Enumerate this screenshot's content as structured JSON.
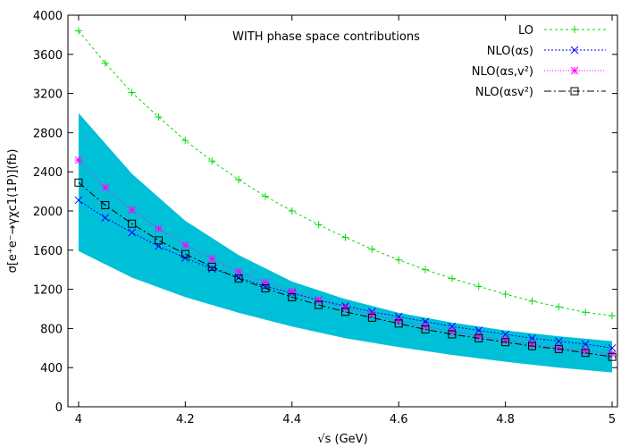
{
  "chart_data": {
    "type": "line",
    "title": "",
    "annotation": "WITH phase space contributions",
    "xlabel": "√s (GeV)",
    "ylabel": "σ[e⁺e⁻→γχc1(1P)](fb)",
    "xlim": [
      3.98,
      5.01
    ],
    "ylim": [
      0,
      4000
    ],
    "xticks": [
      4,
      4.2,
      4.4,
      4.6,
      4.8,
      5
    ],
    "xtick_labels": [
      "4",
      "4.2",
      "4.4",
      "4.6",
      "4.8",
      "5"
    ],
    "yticks": [
      0,
      400,
      800,
      1200,
      1600,
      2000,
      2400,
      2800,
      3200,
      3600,
      4000
    ],
    "ytick_labels": [
      "0",
      "400",
      "800",
      "1200",
      "1600",
      "2000",
      "2400",
      "2800",
      "3200",
      "3600",
      "4000"
    ],
    "grid": false,
    "legend_position": "top-right",
    "band": {
      "color": "#00c0d8",
      "x": [
        4.0,
        4.1,
        4.2,
        4.3,
        4.4,
        4.5,
        4.6,
        4.7,
        4.8,
        4.9,
        5.0
      ],
      "upper": [
        3000,
        2380,
        1900,
        1550,
        1280,
        1100,
        960,
        860,
        780,
        720,
        670
      ],
      "lower": [
        1590,
        1320,
        1120,
        960,
        820,
        700,
        610,
        530,
        460,
        400,
        350
      ]
    },
    "series": [
      {
        "name": "LO",
        "color": "#00dd00",
        "dash": "3,3",
        "marker": "plus",
        "x": [
          4.0,
          4.05,
          4.1,
          4.15,
          4.2,
          4.25,
          4.3,
          4.35,
          4.4,
          4.45,
          4.5,
          4.55,
          4.6,
          4.65,
          4.7,
          4.75,
          4.8,
          4.85,
          4.9,
          4.95,
          5.0
        ],
        "values": [
          3840,
          3510,
          3210,
          2960,
          2720,
          2510,
          2320,
          2150,
          2000,
          1860,
          1730,
          1610,
          1500,
          1400,
          1310,
          1230,
          1150,
          1080,
          1020,
          965,
          930
        ]
      },
      {
        "name": "NLO(αs)",
        "color": "#0000ff",
        "dash": "2,2",
        "marker": "x",
        "x": [
          4.0,
          4.05,
          4.1,
          4.15,
          4.2,
          4.25,
          4.3,
          4.35,
          4.4,
          4.45,
          4.5,
          4.55,
          4.6,
          4.65,
          4.7,
          4.75,
          4.8,
          4.85,
          4.9,
          4.95,
          5.0
        ],
        "values": [
          2110,
          1930,
          1780,
          1640,
          1520,
          1410,
          1320,
          1230,
          1160,
          1090,
          1030,
          970,
          920,
          870,
          820,
          780,
          740,
          700,
          670,
          640,
          600
        ]
      },
      {
        "name": "NLO(αs,v²)",
        "color": "#ff00ff",
        "dash": "1,2",
        "marker": "star",
        "x": [
          4.0,
          4.05,
          4.1,
          4.15,
          4.2,
          4.25,
          4.3,
          4.35,
          4.4,
          4.45,
          4.5,
          4.55,
          4.6,
          4.65,
          4.7,
          4.75,
          4.8,
          4.85,
          4.9,
          4.95,
          5.0
        ],
        "values": [
          2520,
          2240,
          2010,
          1820,
          1650,
          1510,
          1380,
          1270,
          1180,
          1090,
          1010,
          940,
          880,
          820,
          770,
          720,
          680,
          640,
          600,
          570,
          540
        ]
      },
      {
        "name": "NLO(αsv²)",
        "color": "#000000",
        "dash": "8,3,2,3",
        "marker": "square",
        "x": [
          4.0,
          4.05,
          4.1,
          4.15,
          4.2,
          4.25,
          4.3,
          4.35,
          4.4,
          4.45,
          4.5,
          4.55,
          4.6,
          4.65,
          4.7,
          4.75,
          4.8,
          4.85,
          4.9,
          4.95,
          5.0
        ],
        "values": [
          2290,
          2060,
          1870,
          1700,
          1560,
          1430,
          1310,
          1210,
          1120,
          1040,
          970,
          910,
          850,
          790,
          740,
          700,
          660,
          620,
          590,
          550,
          510
        ]
      }
    ]
  }
}
